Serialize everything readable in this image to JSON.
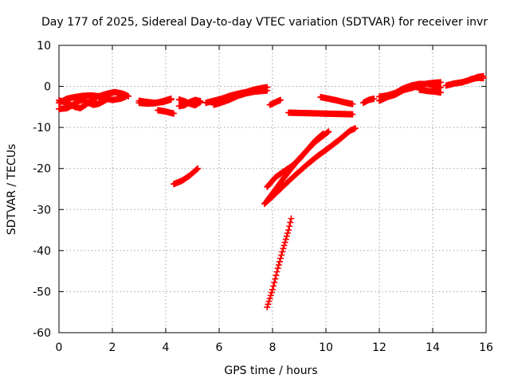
{
  "chart_data": {
    "type": "scatter",
    "title": "Day 177 of 2025, Sidereal Day-to-day VTEC variation (SDTVAR) for receiver invr",
    "xlabel": "GPS time / hours",
    "ylabel": "SDTVAR / TECUs",
    "xlim": [
      0,
      16
    ],
    "ylim": [
      -60,
      10
    ],
    "xticks": [
      "0",
      "2",
      "4",
      "6",
      "8",
      "10",
      "12",
      "14",
      "16"
    ],
    "yticks": [
      "10",
      "0",
      "-10",
      "-20",
      "-30",
      "-40",
      "-50",
      "-60"
    ],
    "grid": true,
    "legend": "none",
    "marker": "plus",
    "color": "#ff0000",
    "series": [
      {
        "points": [
          [
            0.0,
            -4.0
          ],
          [
            0.3,
            -3.0
          ],
          [
            0.6,
            -2.6
          ],
          [
            0.9,
            -2.3
          ],
          [
            1.2,
            -2.2
          ],
          [
            1.5,
            -2.4
          ],
          [
            1.8,
            -1.8
          ],
          [
            2.1,
            -1.4
          ],
          [
            2.4,
            -1.8
          ],
          [
            2.6,
            -2.4
          ]
        ]
      },
      {
        "points": [
          [
            0.0,
            -5.5
          ],
          [
            0.3,
            -5.3
          ],
          [
            0.5,
            -4.6
          ],
          [
            0.7,
            -3.6
          ],
          [
            0.9,
            -3.3
          ],
          [
            1.1,
            -4.0
          ],
          [
            1.3,
            -4.5
          ],
          [
            1.5,
            -4.2
          ],
          [
            1.7,
            -3.5
          ],
          [
            1.9,
            -2.8
          ]
        ]
      },
      {
        "points": [
          [
            0.0,
            -3.4
          ],
          [
            0.3,
            -4.0
          ],
          [
            0.6,
            -5.0
          ],
          [
            0.8,
            -5.3
          ],
          [
            1.0,
            -4.5
          ],
          [
            1.2,
            -3.4
          ],
          [
            1.4,
            -3.0
          ]
        ]
      },
      {
        "points": [
          [
            1.5,
            -2.7
          ],
          [
            1.8,
            -3.0
          ],
          [
            2.0,
            -3.3
          ],
          [
            2.3,
            -3.0
          ],
          [
            2.5,
            -2.5
          ]
        ]
      },
      {
        "points": [
          [
            3.0,
            -3.5
          ],
          [
            3.3,
            -3.8
          ],
          [
            3.6,
            -4.0
          ],
          [
            3.9,
            -3.8
          ],
          [
            4.2,
            -3.2
          ]
        ]
      },
      {
        "points": [
          [
            3.0,
            -4.0
          ],
          [
            3.3,
            -4.2
          ],
          [
            3.6,
            -4.1
          ],
          [
            3.9,
            -3.6
          ],
          [
            4.2,
            -3.0
          ]
        ]
      },
      {
        "points": [
          [
            3.7,
            -5.8
          ],
          [
            3.9,
            -6.0
          ],
          [
            4.1,
            -6.3
          ],
          [
            4.3,
            -6.6
          ]
        ]
      },
      {
        "points": [
          [
            4.5,
            -3.2
          ],
          [
            4.7,
            -3.6
          ],
          [
            4.9,
            -4.2
          ],
          [
            5.1,
            -4.6
          ],
          [
            5.3,
            -3.8
          ]
        ]
      },
      {
        "points": [
          [
            4.5,
            -4.8
          ],
          [
            4.7,
            -4.6
          ],
          [
            4.9,
            -3.8
          ],
          [
            5.1,
            -3.3
          ],
          [
            5.3,
            -3.6
          ]
        ]
      },
      {
        "points": [
          [
            5.5,
            -4.0
          ],
          [
            5.8,
            -3.5
          ],
          [
            6.1,
            -3.0
          ],
          [
            6.4,
            -2.3
          ],
          [
            6.7,
            -1.8
          ],
          [
            7.0,
            -1.4
          ],
          [
            7.3,
            -0.8
          ],
          [
            7.6,
            -0.4
          ],
          [
            7.8,
            -0.2
          ]
        ]
      },
      {
        "points": [
          [
            5.8,
            -4.5
          ],
          [
            6.1,
            -3.9
          ],
          [
            6.4,
            -3.2
          ],
          [
            6.7,
            -2.3
          ],
          [
            7.0,
            -1.7
          ],
          [
            7.3,
            -1.3
          ],
          [
            7.6,
            -1.1
          ],
          [
            7.8,
            -1.0
          ]
        ]
      },
      {
        "points": [
          [
            7.9,
            -4.5
          ],
          [
            8.1,
            -3.9
          ],
          [
            8.3,
            -3.3
          ]
        ]
      },
      {
        "points": [
          [
            4.3,
            -23.8
          ],
          [
            4.6,
            -23.0
          ],
          [
            4.9,
            -21.7
          ],
          [
            5.2,
            -20.0
          ]
        ]
      },
      {
        "points": [
          [
            7.8,
            -24.5
          ],
          [
            8.1,
            -22.2
          ],
          [
            8.4,
            -20.8
          ],
          [
            8.7,
            -19.5
          ],
          [
            9.0,
            -17.8
          ],
          [
            9.3,
            -15.5
          ],
          [
            9.6,
            -13.2
          ],
          [
            9.9,
            -11.5
          ]
        ]
      },
      {
        "points": [
          [
            7.8,
            -27.8
          ],
          [
            8.1,
            -25.2
          ],
          [
            8.4,
            -22.5
          ],
          [
            8.7,
            -20.0
          ],
          [
            9.0,
            -17.6
          ],
          [
            9.3,
            -15.5
          ],
          [
            9.6,
            -13.5
          ],
          [
            9.9,
            -12.0
          ],
          [
            10.1,
            -11.0
          ]
        ]
      },
      {
        "points": [
          [
            7.7,
            -28.6
          ],
          [
            8.1,
            -26.2
          ],
          [
            8.5,
            -23.7
          ],
          [
            8.9,
            -21.3
          ],
          [
            9.3,
            -19.0
          ],
          [
            9.7,
            -16.9
          ],
          [
            10.1,
            -15.0
          ],
          [
            10.5,
            -13.0
          ],
          [
            10.9,
            -10.8
          ],
          [
            11.1,
            -10.2
          ]
        ]
      },
      {
        "points": [
          [
            7.8,
            -53.8
          ],
          [
            8.0,
            -49.5
          ],
          [
            8.2,
            -44.3
          ],
          [
            8.4,
            -39.5
          ],
          [
            8.6,
            -35.0
          ],
          [
            8.7,
            -32.2
          ]
        ]
      },
      {
        "points": [
          [
            8.6,
            -6.4
          ],
          [
            9.2,
            -6.5
          ],
          [
            9.8,
            -6.6
          ],
          [
            10.4,
            -6.7
          ],
          [
            11.0,
            -6.8
          ]
        ]
      },
      {
        "points": [
          [
            9.8,
            -2.6
          ],
          [
            10.1,
            -3.0
          ],
          [
            10.4,
            -3.4
          ],
          [
            10.7,
            -3.9
          ],
          [
            11.0,
            -4.3
          ]
        ]
      },
      {
        "points": [
          [
            11.4,
            -4.0
          ],
          [
            11.6,
            -3.3
          ],
          [
            11.8,
            -3.0
          ]
        ]
      },
      {
        "points": [
          [
            12.0,
            -3.5
          ],
          [
            12.3,
            -2.6
          ],
          [
            12.6,
            -2.0
          ],
          [
            12.9,
            -0.9
          ],
          [
            13.2,
            -0.4
          ],
          [
            13.5,
            0.2
          ],
          [
            13.8,
            0.7
          ],
          [
            14.1,
            0.9
          ],
          [
            14.3,
            1.0
          ]
        ]
      },
      {
        "points": [
          [
            12.0,
            -2.5
          ],
          [
            12.3,
            -2.2
          ],
          [
            12.6,
            -1.6
          ],
          [
            12.9,
            -0.5
          ],
          [
            13.2,
            0.2
          ],
          [
            13.5,
            0.6
          ],
          [
            13.8,
            0.6
          ],
          [
            14.1,
            0.2
          ],
          [
            14.3,
            -0.3
          ]
        ]
      },
      {
        "points": [
          [
            13.5,
            -0.8
          ],
          [
            13.8,
            -1.1
          ],
          [
            14.1,
            -1.3
          ],
          [
            14.3,
            -1.5
          ]
        ]
      },
      {
        "points": [
          [
            14.5,
            0.2
          ],
          [
            14.8,
            0.7
          ],
          [
            15.1,
            1.0
          ],
          [
            15.4,
            1.6
          ],
          [
            15.7,
            2.3
          ],
          [
            15.9,
            2.5
          ]
        ]
      },
      {
        "points": [
          [
            15.4,
            1.7
          ],
          [
            15.7,
            2.1
          ],
          [
            15.9,
            2.0
          ]
        ]
      }
    ]
  }
}
